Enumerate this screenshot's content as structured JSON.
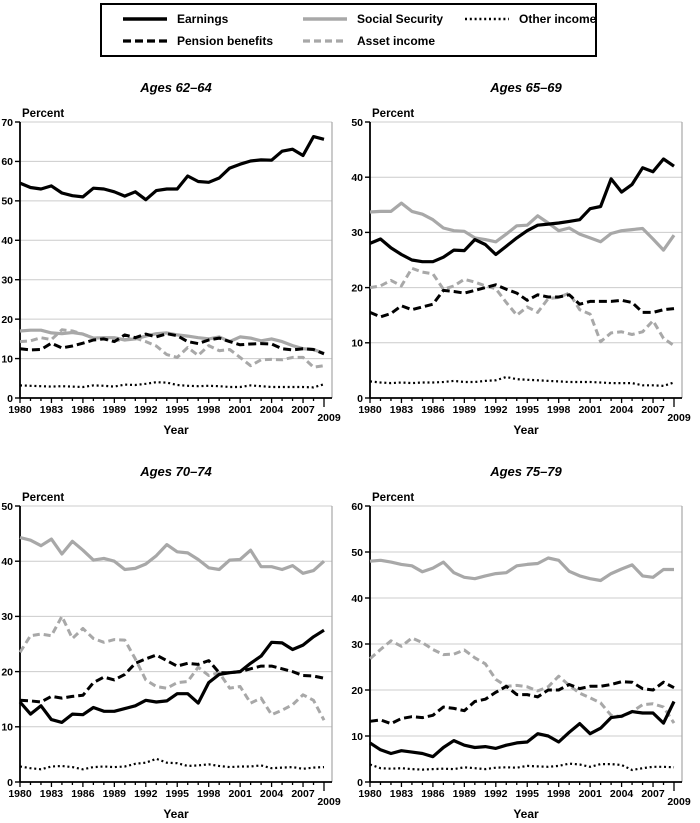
{
  "page": {
    "background": "#ffffff"
  },
  "colors": {
    "black": "#000000",
    "gray": "#a8a8a8",
    "gridline": "#cccccc",
    "plot_right_border": "#a8a8a8"
  },
  "legend": {
    "items": [
      {
        "key": "earnings",
        "label": "Earnings"
      },
      {
        "key": "pension",
        "label": "Pension benefits"
      },
      {
        "key": "social_security",
        "label": "Social Security"
      },
      {
        "key": "asset",
        "label": "Asset income"
      },
      {
        "key": "other",
        "label": "Other income"
      }
    ]
  },
  "axes": {
    "y_label": "Percent",
    "x_label": "Year",
    "x_tick_years": [
      1980,
      1983,
      1986,
      1989,
      1992,
      1995,
      1998,
      2001,
      2004,
      2007
    ],
    "x_end_label": "2009",
    "x_range": [
      1980,
      2009
    ]
  },
  "chart_data": [
    {
      "type": "line",
      "title": "Ages 62–64",
      "xlabel": "Year",
      "ylabel": "Percent",
      "ylim": [
        0,
        70
      ],
      "ytick_step": 10,
      "x_range": [
        1980,
        2009
      ],
      "grid": true,
      "series": [
        {
          "key": "social_security",
          "name": "Social Security",
          "values": [
            17.0,
            17.2,
            17.2,
            16.5,
            16.3,
            16.6,
            16.2,
            15.2,
            15.3,
            15.3,
            14.7,
            15.0,
            15.7,
            16.3,
            16.5,
            16.0,
            15.7,
            15.3,
            15.0,
            15.5,
            14.3,
            15.5,
            15.2,
            14.5,
            15.0,
            14.3,
            13.3,
            12.5,
            12.3,
            11.3
          ]
        },
        {
          "key": "asset",
          "name": "Asset income",
          "values": [
            14.3,
            14.5,
            15.3,
            14.8,
            17.3,
            17.0,
            16.2,
            15.2,
            15.3,
            14.5,
            14.8,
            15.2,
            14.3,
            13.2,
            11.0,
            10.3,
            12.8,
            10.8,
            13.3,
            12.0,
            12.3,
            10.3,
            8.2,
            9.7,
            9.8,
            9.7,
            10.3,
            10.3,
            7.8,
            8.2
          ]
        },
        {
          "key": "pension",
          "name": "Pension benefits",
          "values": [
            12.5,
            12.2,
            12.3,
            13.9,
            12.7,
            13.2,
            13.9,
            14.7,
            15.0,
            14.3,
            16.0,
            15.3,
            16.2,
            15.5,
            16.3,
            15.8,
            14.3,
            13.8,
            14.7,
            15.2,
            14.3,
            13.5,
            13.7,
            13.8,
            13.7,
            12.5,
            12.2,
            12.5,
            12.3,
            11.2
          ]
        },
        {
          "key": "earnings",
          "name": "Earnings",
          "values": [
            54.5,
            53.4,
            53.0,
            53.8,
            52.0,
            51.3,
            51.0,
            53.2,
            53.0,
            52.3,
            51.2,
            52.3,
            50.3,
            52.6,
            53.0,
            53.0,
            56.3,
            54.9,
            54.7,
            55.8,
            58.3,
            59.3,
            60.1,
            60.4,
            60.3,
            62.6,
            63.1,
            61.5,
            66.3,
            65.6
          ]
        },
        {
          "key": "other",
          "name": "Other income",
          "values": [
            3.2,
            3.1,
            3.0,
            2.9,
            3.0,
            2.9,
            2.8,
            3.2,
            3.1,
            2.9,
            3.4,
            3.3,
            3.6,
            4.0,
            3.9,
            3.3,
            3.1,
            3.0,
            3.1,
            3.0,
            2.8,
            2.8,
            3.2,
            3.0,
            2.8,
            2.8,
            2.8,
            2.8,
            2.7,
            3.5
          ]
        }
      ]
    },
    {
      "type": "line",
      "title": "Ages 65–69",
      "xlabel": "Year",
      "ylabel": "Percent",
      "ylim": [
        0,
        50
      ],
      "ytick_step": 10,
      "x_range": [
        1980,
        2009
      ],
      "grid": true,
      "series": [
        {
          "key": "social_security",
          "name": "Social Security",
          "values": [
            33.7,
            33.8,
            33.8,
            35.3,
            33.8,
            33.3,
            32.3,
            30.8,
            30.3,
            30.2,
            29.0,
            28.7,
            28.3,
            29.7,
            31.2,
            31.3,
            33.0,
            31.7,
            30.3,
            30.8,
            29.7,
            29.0,
            28.3,
            29.8,
            30.3,
            30.5,
            30.7,
            28.8,
            26.8,
            29.5
          ]
        },
        {
          "key": "asset",
          "name": "Asset income",
          "values": [
            20.0,
            20.3,
            21.3,
            20.3,
            23.5,
            22.8,
            22.5,
            19.7,
            20.3,
            21.5,
            21.0,
            20.3,
            19.8,
            17.3,
            15.0,
            16.5,
            15.5,
            18.0,
            18.2,
            19.0,
            16.0,
            15.2,
            10.2,
            11.8,
            12.0,
            11.5,
            12.0,
            14.0,
            10.8,
            9.5
          ]
        },
        {
          "key": "pension",
          "name": "Pension benefits",
          "values": [
            15.5,
            14.7,
            15.3,
            16.7,
            16.0,
            16.5,
            17.0,
            19.5,
            19.3,
            19.0,
            19.5,
            20.0,
            20.5,
            19.7,
            19.0,
            17.7,
            18.7,
            18.3,
            18.3,
            18.7,
            17.0,
            17.5,
            17.5,
            17.5,
            17.7,
            17.3,
            15.5,
            15.5,
            16.0,
            16.2
          ]
        },
        {
          "key": "earnings",
          "name": "Earnings",
          "values": [
            28.0,
            28.8,
            27.2,
            26.0,
            25.0,
            24.7,
            24.7,
            25.5,
            26.8,
            26.7,
            28.7,
            27.8,
            26.0,
            27.5,
            29.0,
            30.3,
            31.3,
            31.5,
            31.7,
            32.0,
            32.3,
            34.3,
            34.7,
            39.7,
            37.3,
            38.7,
            41.7,
            41.0,
            43.3,
            42.0
          ]
        },
        {
          "key": "other",
          "name": "Other income",
          "values": [
            3.0,
            2.8,
            2.7,
            2.8,
            2.7,
            2.8,
            2.8,
            2.9,
            3.1,
            2.9,
            2.9,
            3.1,
            3.2,
            3.8,
            3.4,
            3.3,
            3.2,
            3.1,
            3.0,
            2.9,
            2.9,
            2.9,
            2.8,
            2.7,
            2.7,
            2.7,
            2.3,
            2.3,
            2.2,
            2.8
          ]
        }
      ]
    },
    {
      "type": "line",
      "title": "Ages 70–74",
      "xlabel": "Year",
      "ylabel": "Percent",
      "ylim": [
        0,
        50
      ],
      "ytick_step": 10,
      "x_range": [
        1980,
        2009
      ],
      "grid": true,
      "series": [
        {
          "key": "social_security",
          "name": "Social Security",
          "values": [
            44.3,
            43.8,
            42.8,
            44.0,
            41.3,
            43.6,
            42.0,
            40.2,
            40.5,
            40.0,
            38.5,
            38.7,
            39.5,
            41.0,
            43.0,
            41.7,
            41.5,
            40.3,
            38.8,
            38.5,
            40.2,
            40.3,
            42.0,
            39.0,
            39.0,
            38.5,
            39.2,
            37.8,
            38.3,
            40.0
          ]
        },
        {
          "key": "asset",
          "name": "Asset income",
          "values": [
            23.5,
            26.5,
            26.8,
            26.5,
            30.0,
            26.0,
            27.8,
            26.0,
            25.3,
            25.8,
            25.7,
            22.3,
            18.5,
            17.3,
            17.0,
            18.0,
            18.2,
            20.8,
            19.3,
            19.8,
            17.0,
            17.3,
            14.3,
            15.2,
            12.2,
            13.0,
            14.0,
            15.8,
            14.8,
            11.2
          ]
        },
        {
          "key": "pension",
          "name": "Pension benefits",
          "values": [
            14.8,
            14.7,
            14.5,
            15.5,
            15.2,
            15.5,
            15.7,
            18.0,
            19.0,
            18.5,
            19.5,
            21.5,
            22.3,
            23.0,
            22.0,
            21.0,
            21.5,
            21.3,
            22.0,
            19.8,
            19.8,
            20.0,
            20.5,
            21.0,
            21.0,
            20.5,
            20.0,
            19.3,
            19.2,
            18.8
          ]
        },
        {
          "key": "earnings",
          "name": "Earnings",
          "values": [
            14.5,
            12.3,
            13.8,
            11.3,
            10.8,
            12.3,
            12.2,
            13.5,
            12.8,
            12.8,
            13.3,
            13.8,
            14.8,
            14.5,
            14.7,
            16.0,
            16.0,
            14.3,
            18.0,
            19.5,
            19.8,
            20.0,
            21.5,
            22.8,
            25.3,
            25.2,
            24.0,
            24.8,
            26.3,
            27.5
          ]
        },
        {
          "key": "other",
          "name": "Other income",
          "values": [
            2.8,
            2.5,
            2.3,
            2.8,
            2.9,
            2.7,
            2.3,
            2.7,
            2.8,
            2.7,
            2.8,
            3.3,
            3.5,
            4.2,
            3.5,
            3.4,
            2.9,
            3.0,
            3.2,
            2.9,
            2.7,
            2.8,
            2.8,
            3.0,
            2.5,
            2.6,
            2.7,
            2.4,
            2.6,
            2.7
          ]
        }
      ]
    },
    {
      "type": "line",
      "title": "Ages 75–79",
      "xlabel": "Year",
      "ylabel": "Percent",
      "ylim": [
        0,
        60
      ],
      "ytick_step": 10,
      "x_range": [
        1980,
        2009
      ],
      "grid": true,
      "series": [
        {
          "key": "social_security",
          "name": "Social Security",
          "values": [
            48.0,
            48.2,
            47.8,
            47.3,
            47.0,
            45.7,
            46.5,
            47.8,
            45.5,
            44.5,
            44.2,
            44.8,
            45.3,
            45.5,
            47.0,
            47.3,
            47.5,
            48.7,
            48.2,
            45.8,
            44.8,
            44.2,
            43.8,
            45.3,
            46.3,
            47.2,
            44.8,
            44.5,
            46.2,
            46.2
          ]
        },
        {
          "key": "asset",
          "name": "Asset income",
          "values": [
            26.8,
            28.8,
            30.7,
            29.5,
            31.3,
            30.3,
            28.8,
            27.7,
            27.8,
            28.7,
            27.0,
            25.7,
            22.3,
            20.8,
            21.0,
            20.7,
            19.8,
            20.7,
            23.0,
            21.0,
            19.3,
            18.3,
            17.2,
            14.5,
            14.2,
            15.3,
            16.8,
            17.0,
            16.3,
            12.8
          ]
        },
        {
          "key": "pension",
          "name": "Pension benefits",
          "values": [
            13.2,
            13.5,
            12.7,
            13.8,
            14.2,
            14.0,
            14.5,
            16.3,
            16.0,
            15.5,
            17.5,
            18.0,
            19.5,
            20.8,
            19.0,
            19.0,
            18.5,
            20.0,
            20.0,
            21.2,
            20.3,
            20.8,
            20.8,
            21.2,
            21.8,
            21.7,
            20.3,
            20.0,
            21.7,
            20.5
          ]
        },
        {
          "key": "earnings",
          "name": "Earnings",
          "values": [
            8.5,
            7.0,
            6.2,
            6.8,
            6.5,
            6.2,
            5.5,
            7.5,
            9.0,
            8.0,
            7.5,
            7.7,
            7.3,
            8.0,
            8.5,
            8.7,
            10.5,
            10.0,
            8.7,
            10.8,
            12.7,
            10.5,
            11.7,
            14.0,
            14.3,
            15.3,
            15.0,
            15.0,
            12.8,
            17.5
          ]
        },
        {
          "key": "other",
          "name": "Other income",
          "values": [
            3.8,
            3.0,
            2.9,
            3.0,
            2.8,
            2.7,
            2.8,
            2.9,
            2.8,
            3.2,
            3.0,
            2.8,
            3.1,
            3.2,
            3.1,
            3.5,
            3.4,
            3.3,
            3.5,
            4.0,
            3.8,
            3.3,
            3.9,
            3.9,
            3.7,
            2.6,
            3.0,
            3.3,
            3.3,
            3.2
          ]
        }
      ]
    }
  ]
}
